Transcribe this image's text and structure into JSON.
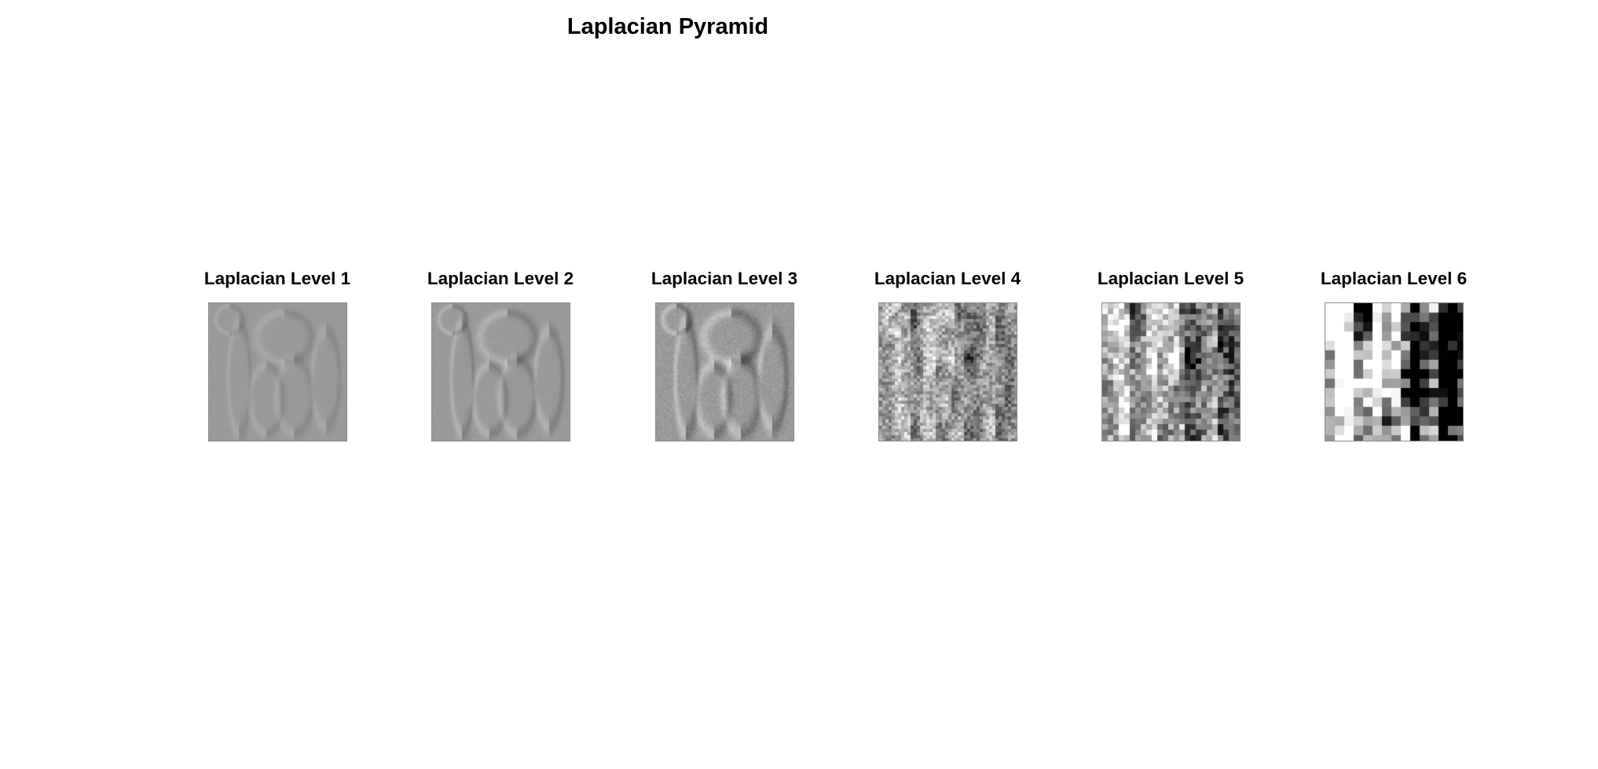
{
  "figure": {
    "title": "Laplacian Pyramid"
  },
  "panels": [
    {
      "title": "Laplacian Level 1",
      "block_size": 1,
      "contrast": 0.06
    },
    {
      "title": "Laplacian Level 2",
      "block_size": 1,
      "contrast": 0.1
    },
    {
      "title": "Laplacian Level 3",
      "block_size": 2,
      "contrast": 0.16
    },
    {
      "title": "Laplacian Level 4",
      "block_size": 4,
      "contrast": 0.22
    },
    {
      "title": "Laplacian Level 5",
      "block_size": 7,
      "contrast": 0.3
    },
    {
      "title": "Laplacian Level 6",
      "block_size": 12,
      "contrast": 0.55
    }
  ],
  "colors": {
    "background": "#ffffff",
    "text": "#000000",
    "mid_gray": "#9a9a9a"
  }
}
